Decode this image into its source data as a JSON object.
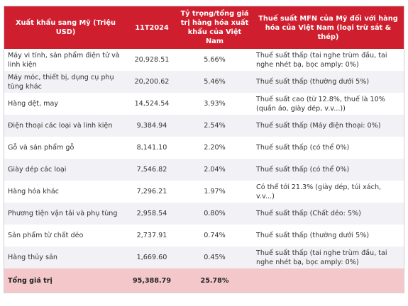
{
  "table": {
    "header": [
      "Xuất khẩu sang Mỹ (Triệu USD)",
      "11T2024",
      "Tỷ trọng/tổng giá trị hàng hóa xuất khẩu của Việt Nam",
      "Thuế suất MFN của Mỹ đối với hàng hóa của Việt Nam (loại trừ sắt & thép)"
    ],
    "rows": [
      [
        "Máy vi tính, sản phẩm điện tử và linh kiện",
        "20,928.51",
        "5.66%",
        "Thuế suất thấp (tai nghe trùm đầu, tai nghe nhét bạ, bọc amply: 0%)"
      ],
      [
        "Máy móc, thiết bị, dụng cụ phụ tùng khác",
        "20,200.62",
        "5.46%",
        "Thuế suất thấp (thường dưới 5%)"
      ],
      [
        "Hàng dệt, may",
        "14,524.54",
        "3.93%",
        "Thuế suất cao (từ 12.8%, thuế là 10% (quần áo, giày dép, v.v...))"
      ],
      [
        "Điện thoại các loại và linh kiện",
        "9,384.94",
        "2.54%",
        "Thuế suất thấp (Máy điện thoại: 0%)"
      ],
      [
        "Gỗ và sản phẩm gỗ",
        "8,141.10",
        "2.20%",
        "Thuế suất thấp (có thể 0%)"
      ],
      [
        "Giày dép các loại",
        "7,546.82",
        "2.04%",
        "Thuế suất thấp (có thể 0%)"
      ],
      [
        "Hàng hóa khác",
        "7,296.21",
        "1.97%",
        "Có thể tới 21.3% (giày dép, túi xách, v.v...)"
      ],
      [
        "Phương tiện vận tải và phụ tùng",
        "2,958.54",
        "0.80%",
        "Thuế suất thấp (Chất dẻo: 5%)"
      ],
      [
        "Sản phẩm từ chất dẻo",
        "2,737.91",
        "0.74%",
        "Thuế suất thấp (thường dưới 5%)"
      ],
      [
        "Hàng thủy sản",
        "1,669.60",
        "0.45%",
        "Thuế suất thấp (tai nghe trùm đầu, tai nghe nhét bạ, bọc amply: 0%)"
      ]
    ],
    "total": [
      "Tổng giá trị",
      "95,388.79",
      "25.78%"
    ]
  }
}
